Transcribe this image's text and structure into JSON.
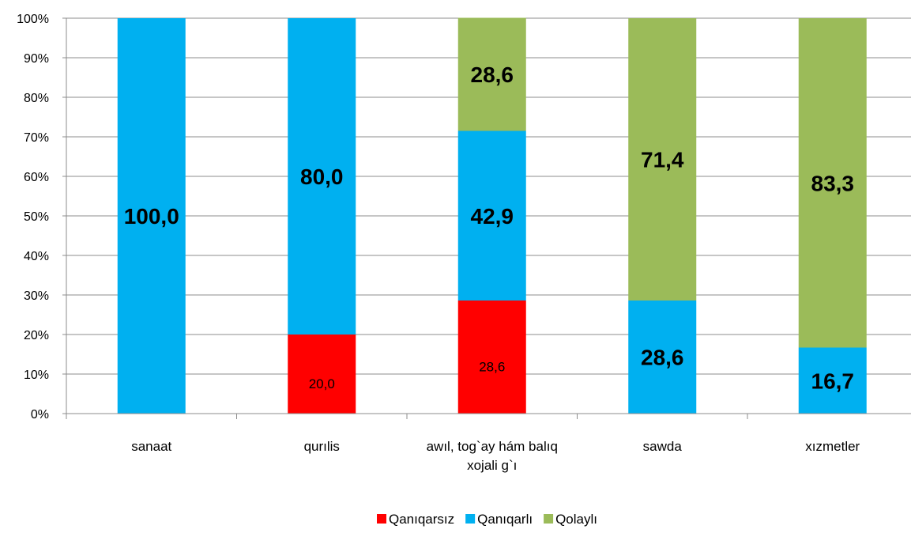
{
  "chart_data": {
    "type": "bar",
    "stacked": true,
    "percent_stacked": true,
    "categories": [
      [
        "sanaat"
      ],
      [
        "qurılis"
      ],
      [
        "awıl, tog`ay hám balıq",
        "xojali g`ı"
      ],
      [
        "sawda"
      ],
      [
        "xızmetler"
      ]
    ],
    "series": [
      {
        "name": "Qanıqarsız",
        "color": "#ff0000",
        "values": [
          0,
          20.0,
          28.6,
          0,
          0
        ],
        "labels": [
          "",
          "20,0",
          "28,6",
          "",
          ""
        ]
      },
      {
        "name": "Qanıqarlı",
        "color": "#00b0f0",
        "values": [
          100.0,
          80.0,
          42.9,
          28.6,
          16.7
        ],
        "labels": [
          "100,0",
          "80,0",
          "42,9",
          "28,6",
          "16,7"
        ]
      },
      {
        "name": "Qolaylı",
        "color": "#9bbb59",
        "values": [
          0,
          0,
          28.6,
          71.4,
          83.3
        ],
        "labels": [
          "",
          "",
          "28,6",
          "71,4",
          "83,3"
        ]
      }
    ],
    "ylim": [
      0,
      100
    ],
    "yticks": [
      "0%",
      "10%",
      "20%",
      "30%",
      "40%",
      "50%",
      "60%",
      "70%",
      "80%",
      "90%",
      "100%"
    ],
    "grid": true,
    "legend_position": "bottom",
    "title": "",
    "xlabel": "",
    "ylabel": ""
  }
}
